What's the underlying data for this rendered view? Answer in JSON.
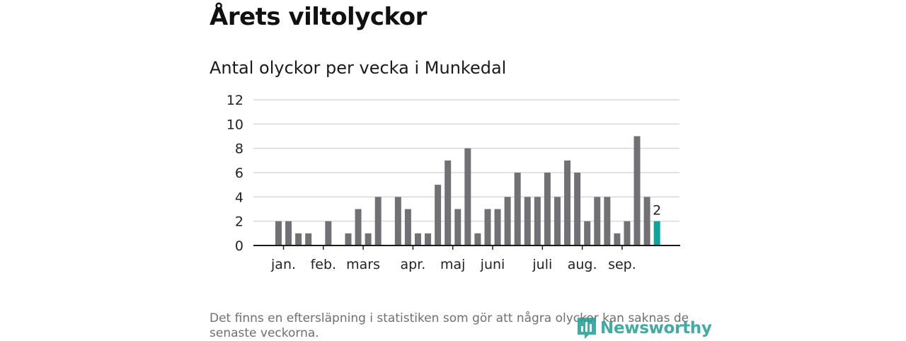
{
  "header": {
    "title": "Årets viltolyckor",
    "subtitle": "Antal olyckor per vecka i Munkedal"
  },
  "footer": {
    "note": "Det finns en eftersläpning i statistiken som gör att några olyckor kan saknas de senaste veckorna.",
    "brand": "Newsworthy",
    "brand_icon": "newsworthy-logo-icon"
  },
  "colors": {
    "bar": "#717075",
    "highlight": "#0fa39b",
    "grid": "#d9d9d9",
    "axis": "#1a1a1a",
    "brand": "#1f9c93"
  },
  "chart_data": {
    "type": "bar",
    "title": "Antal olyckor per vecka i Munkedal",
    "xlabel": "",
    "ylabel": "",
    "ylim": [
      0,
      12
    ],
    "yticks": [
      0,
      2,
      4,
      6,
      8,
      10,
      12
    ],
    "grid": true,
    "weeks": [
      1,
      2,
      3,
      4,
      5,
      6,
      7,
      8,
      9,
      10,
      11,
      12,
      13,
      14,
      15,
      16,
      17,
      18,
      19,
      20,
      21,
      22,
      23,
      24,
      25,
      26,
      27,
      28,
      29,
      30,
      31,
      32,
      33,
      34,
      35,
      36,
      37,
      38,
      39
    ],
    "values": [
      2,
      2,
      1,
      1,
      0,
      2,
      0,
      1,
      3,
      1,
      4,
      0,
      4,
      3,
      1,
      1,
      5,
      7,
      3,
      8,
      1,
      3,
      3,
      4,
      6,
      4,
      4,
      6,
      4,
      7,
      6,
      2,
      4,
      4,
      1,
      2,
      9,
      4,
      2
    ],
    "month_labels": [
      {
        "label": "jan.",
        "week": 1.5
      },
      {
        "label": "feb.",
        "week": 5.5
      },
      {
        "label": "mars",
        "week": 9.5
      },
      {
        "label": "apr.",
        "week": 14.5
      },
      {
        "label": "maj",
        "week": 18.5
      },
      {
        "label": "juni",
        "week": 22.5
      },
      {
        "label": "juli",
        "week": 27.5
      },
      {
        "label": "aug.",
        "week": 31.5
      },
      {
        "label": "sep.",
        "week": 35.5
      }
    ],
    "highlight_last": true,
    "last_value_label": "2"
  }
}
